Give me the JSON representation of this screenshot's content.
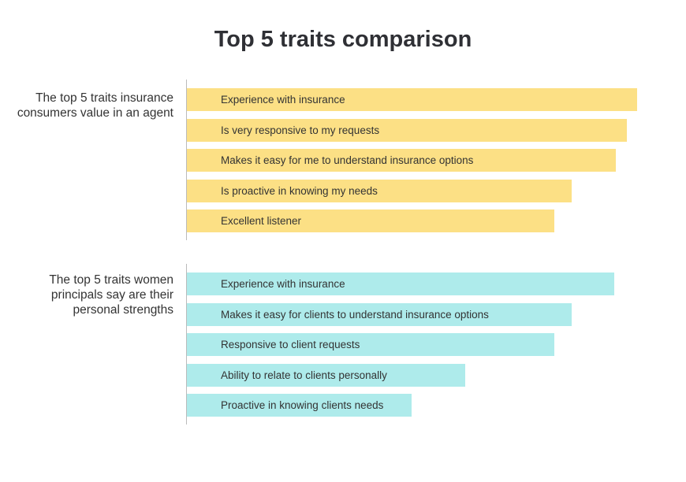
{
  "chart_data": {
    "type": "bar",
    "orientation": "horizontal",
    "title": "Top 5 traits comparison",
    "xlim": [
      0,
      100
    ],
    "grid": false,
    "groups": [
      {
        "label": "The top 5 traits insurance consumers value in an agent",
        "color": "#FCE085",
        "categories": [
          "Experience with insurance",
          "Is very responsive to my requests",
          "Makes it easy for me to understand insurance options",
          "Is proactive in knowing my needs",
          "Excellent listener"
        ],
        "values": [
          100,
          97.7,
          95.3,
          85.5,
          81.6
        ]
      },
      {
        "label": "The top 5 traits women principals say are their personal strengths",
        "color": "#AEEBEB",
        "categories": [
          "Experience with insurance",
          "Makes it easy for clients to understand insurance options",
          "Responsive to client requests",
          "Ability to relate to clients personally",
          "Proactive in knowing clients needs"
        ],
        "values": [
          94.9,
          85.5,
          81.6,
          61.8,
          49.9
        ]
      }
    ]
  }
}
